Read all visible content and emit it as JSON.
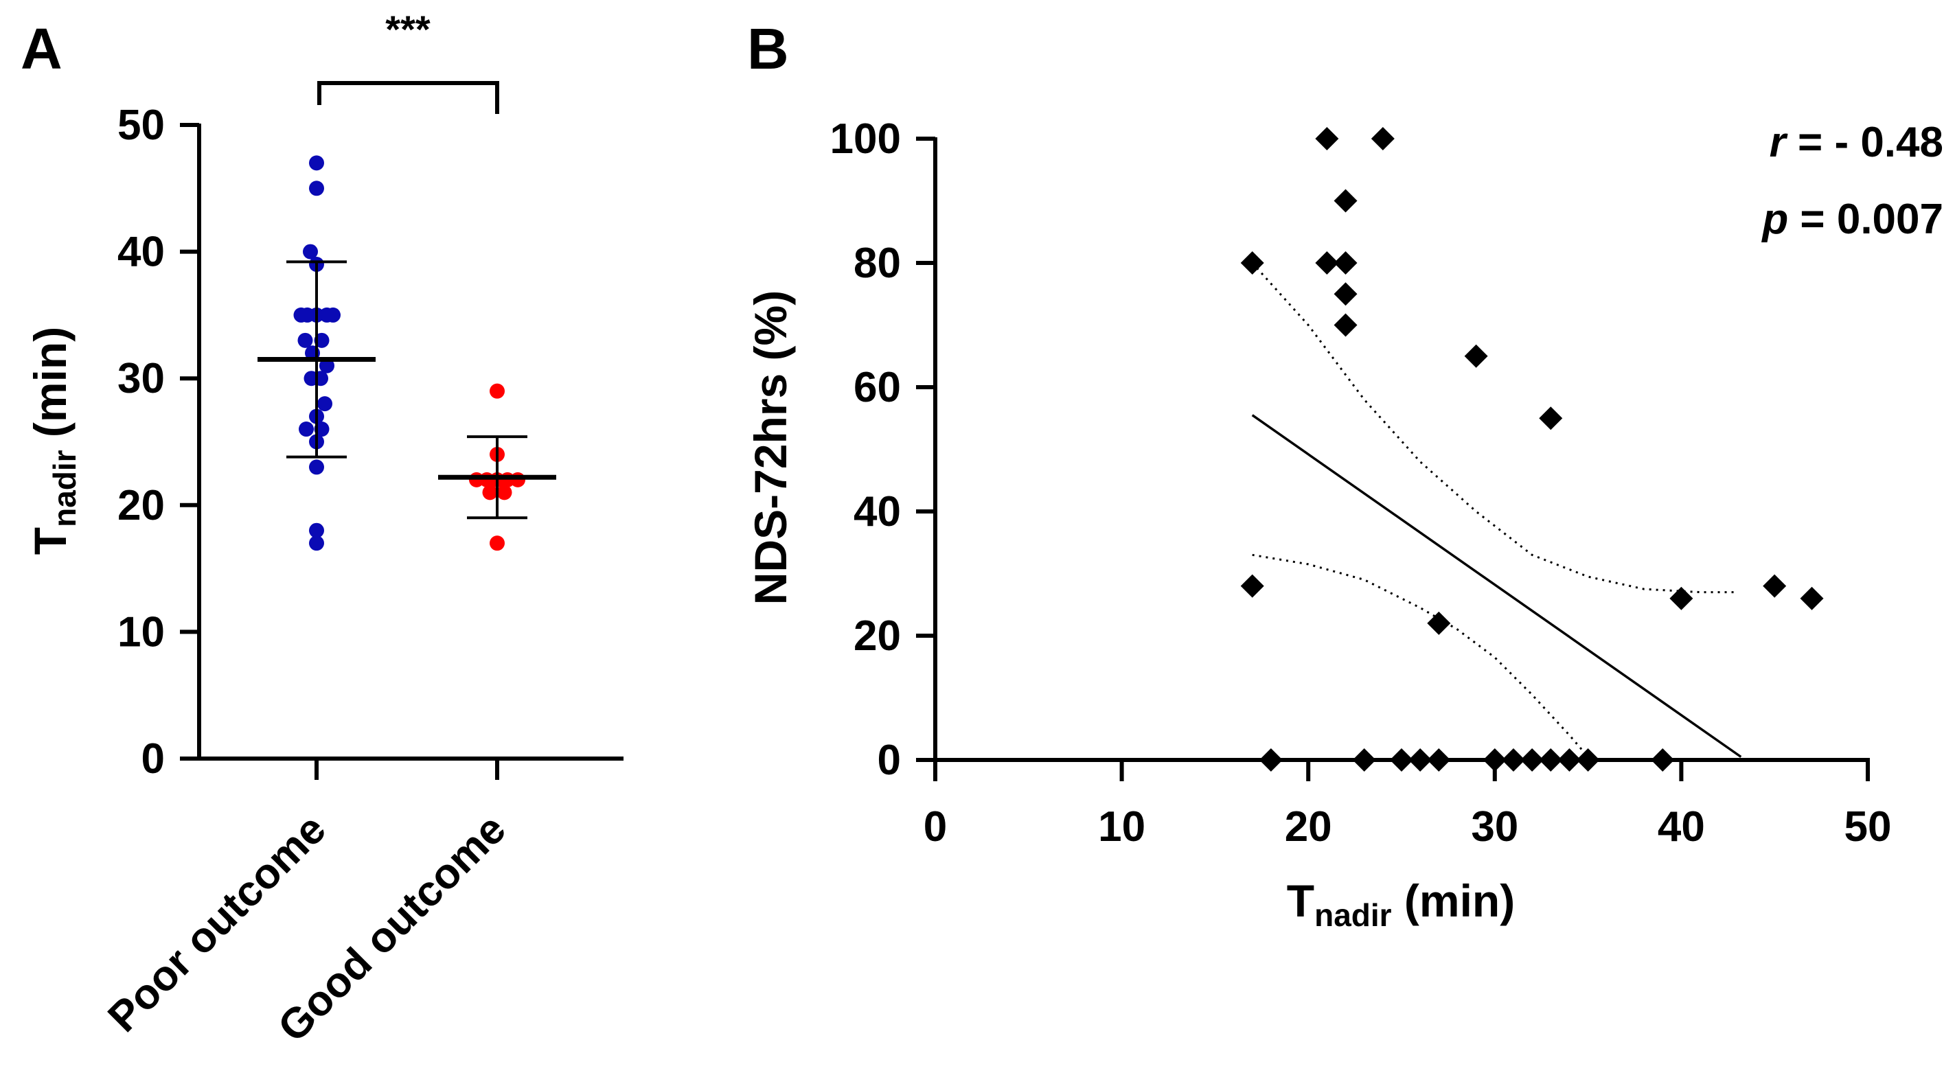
{
  "chart_data": [
    {
      "panel": "A",
      "type": "scatter",
      "subtype": "dot-plot with mean and SD",
      "ylabel": {
        "main": "T",
        "sub": "nadir",
        "unit": " (min)"
      },
      "ylim": [
        0,
        50
      ],
      "yticks": [
        "0",
        "10",
        "20",
        "30",
        "40",
        "50"
      ],
      "categories": [
        "Poor outcome",
        "Good outcome"
      ],
      "significance": "***",
      "series": [
        {
          "name": "Poor outcome",
          "color": "#0a0ab4",
          "points": [
            [
              0,
              47
            ],
            [
              0,
              45
            ],
            [
              -0.06,
              40
            ],
            [
              0,
              39
            ],
            [
              -0.15,
              35
            ],
            [
              -0.09,
              35
            ],
            [
              0,
              35
            ],
            [
              0.1,
              35
            ],
            [
              0.16,
              35
            ],
            [
              -0.11,
              33
            ],
            [
              0.05,
              33
            ],
            [
              -0.04,
              32
            ],
            [
              0.1,
              31
            ],
            [
              -0.05,
              30
            ],
            [
              0.04,
              30
            ],
            [
              0.08,
              28
            ],
            [
              0,
              27
            ],
            [
              -0.1,
              26
            ],
            [
              0.05,
              26
            ],
            [
              0,
              25
            ],
            [
              0,
              23
            ],
            [
              0,
              18
            ],
            [
              0,
              17
            ]
          ],
          "mean": 31.5,
          "sd_low": 23.8,
          "sd_high": 39.2
        },
        {
          "name": "Good outcome",
          "color": "#ff0000",
          "points": [
            [
              0,
              29
            ],
            [
              0,
              24
            ],
            [
              -0.2,
              22
            ],
            [
              -0.1,
              22
            ],
            [
              0,
              22
            ],
            [
              0.1,
              22
            ],
            [
              0.2,
              22
            ],
            [
              -0.07,
              21
            ],
            [
              0.07,
              21
            ],
            [
              0,
              17
            ]
          ],
          "mean": 22.2,
          "sd_low": 19.0,
          "sd_high": 25.4
        }
      ]
    },
    {
      "panel": "B",
      "type": "scatter",
      "xlabel": {
        "main": "T",
        "sub": "nadir",
        "unit": " (min)"
      },
      "ylabel": "NDS-72hrs (%)",
      "xlim": [
        0,
        50
      ],
      "ylim": [
        0,
        100
      ],
      "xticks": [
        "0",
        "10",
        "20",
        "30",
        "40",
        "50"
      ],
      "yticks": [
        "0",
        "20",
        "40",
        "60",
        "80",
        "100"
      ],
      "stats": {
        "r_symbol": "r",
        "r_value": " = - 0.48",
        "p_symbol": "p",
        "p_value": " = 0.007"
      },
      "points": [
        [
          21,
          100
        ],
        [
          24,
          100
        ],
        [
          22,
          90
        ],
        [
          17,
          80
        ],
        [
          21,
          80
        ],
        [
          22,
          80
        ],
        [
          22,
          75
        ],
        [
          22,
          70
        ],
        [
          29,
          65
        ],
        [
          33,
          55
        ],
        [
          17,
          28
        ],
        [
          27,
          22
        ],
        [
          40,
          26
        ],
        [
          45,
          28
        ],
        [
          47,
          26
        ],
        [
          18,
          0
        ],
        [
          23,
          0
        ],
        [
          25,
          0
        ],
        [
          26,
          0
        ],
        [
          27,
          0
        ],
        [
          30,
          0
        ],
        [
          31,
          0
        ],
        [
          32,
          0
        ],
        [
          33,
          0
        ],
        [
          34,
          0
        ],
        [
          35,
          0
        ],
        [
          39,
          0
        ]
      ],
      "regression_line": [
        [
          17,
          55.5
        ],
        [
          43.2,
          0.5
        ]
      ],
      "ci_upper": [
        [
          17,
          80
        ],
        [
          20,
          70
        ],
        [
          23,
          58
        ],
        [
          26,
          48
        ],
        [
          29,
          40
        ],
        [
          32,
          33
        ],
        [
          35,
          29.5
        ],
        [
          38,
          27.5
        ],
        [
          41,
          27
        ],
        [
          43,
          27
        ]
      ],
      "ci_lower": [
        [
          17,
          33
        ],
        [
          20,
          31.5
        ],
        [
          23,
          29
        ],
        [
          26,
          24.5
        ],
        [
          28,
          21
        ],
        [
          30,
          16.5
        ],
        [
          32,
          10.5
        ],
        [
          34,
          4
        ],
        [
          35,
          0.5
        ]
      ]
    }
  ]
}
